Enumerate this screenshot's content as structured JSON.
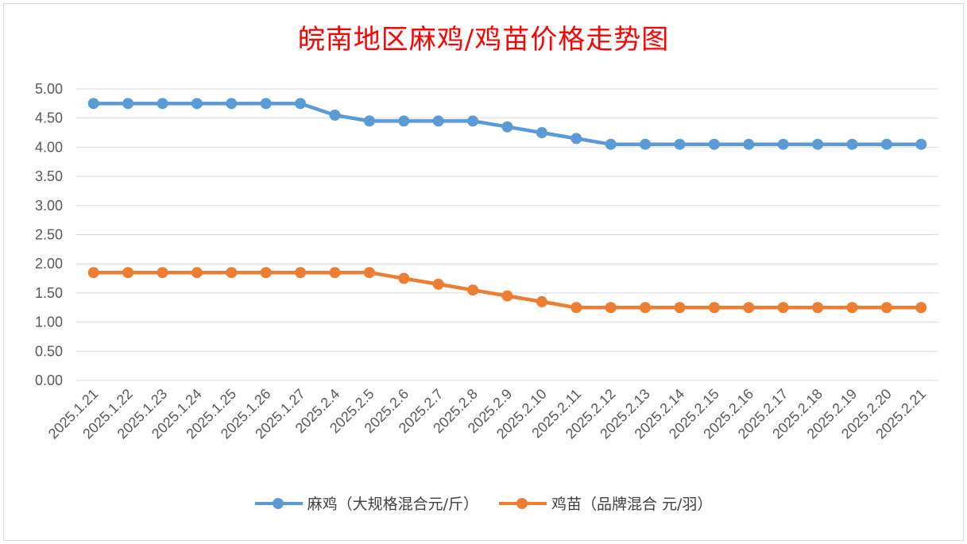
{
  "chart_data": {
    "type": "line",
    "title": "皖南地区麻鸡/鸡苗价格走势图",
    "xlabel": "",
    "ylabel": "",
    "ylim": [
      0,
      5
    ],
    "yticks": [
      "0.00",
      "0.50",
      "1.00",
      "1.50",
      "2.00",
      "2.50",
      "3.00",
      "3.50",
      "4.00",
      "4.50",
      "5.00"
    ],
    "grid": true,
    "legend_position": "bottom",
    "categories": [
      "2025.1.21",
      "2025.1.22",
      "2025.1.23",
      "2025.1.24",
      "2025.1.25",
      "2025.1.26",
      "2025.1.27",
      "2025.2.4",
      "2025.2.5",
      "2025.2.6",
      "2025.2.7",
      "2025.2.8",
      "2025.2.9",
      "2025.2.10",
      "2025.2.11",
      "2025.2.12",
      "2025.2.13",
      "2025.2.14",
      "2025.2.15",
      "2025.2.16",
      "2025.2.17",
      "2025.2.18",
      "2025.2.19",
      "2025.2.20",
      "2025.2.21"
    ],
    "series": [
      {
        "name": "麻鸡（大规格混合元/斤）",
        "color": "#5b9bd5",
        "values": [
          4.75,
          4.75,
          4.75,
          4.75,
          4.75,
          4.75,
          4.75,
          4.55,
          4.45,
          4.45,
          4.45,
          4.45,
          4.35,
          4.25,
          4.15,
          4.05,
          4.05,
          4.05,
          4.05,
          4.05,
          4.05,
          4.05,
          4.05,
          4.05,
          4.05
        ]
      },
      {
        "name": "鸡苗（品牌混合 元/羽）",
        "color": "#ed7d31",
        "values": [
          1.85,
          1.85,
          1.85,
          1.85,
          1.85,
          1.85,
          1.85,
          1.85,
          1.85,
          1.75,
          1.65,
          1.55,
          1.45,
          1.35,
          1.25,
          1.25,
          1.25,
          1.25,
          1.25,
          1.25,
          1.25,
          1.25,
          1.25,
          1.25,
          1.25
        ]
      }
    ]
  }
}
